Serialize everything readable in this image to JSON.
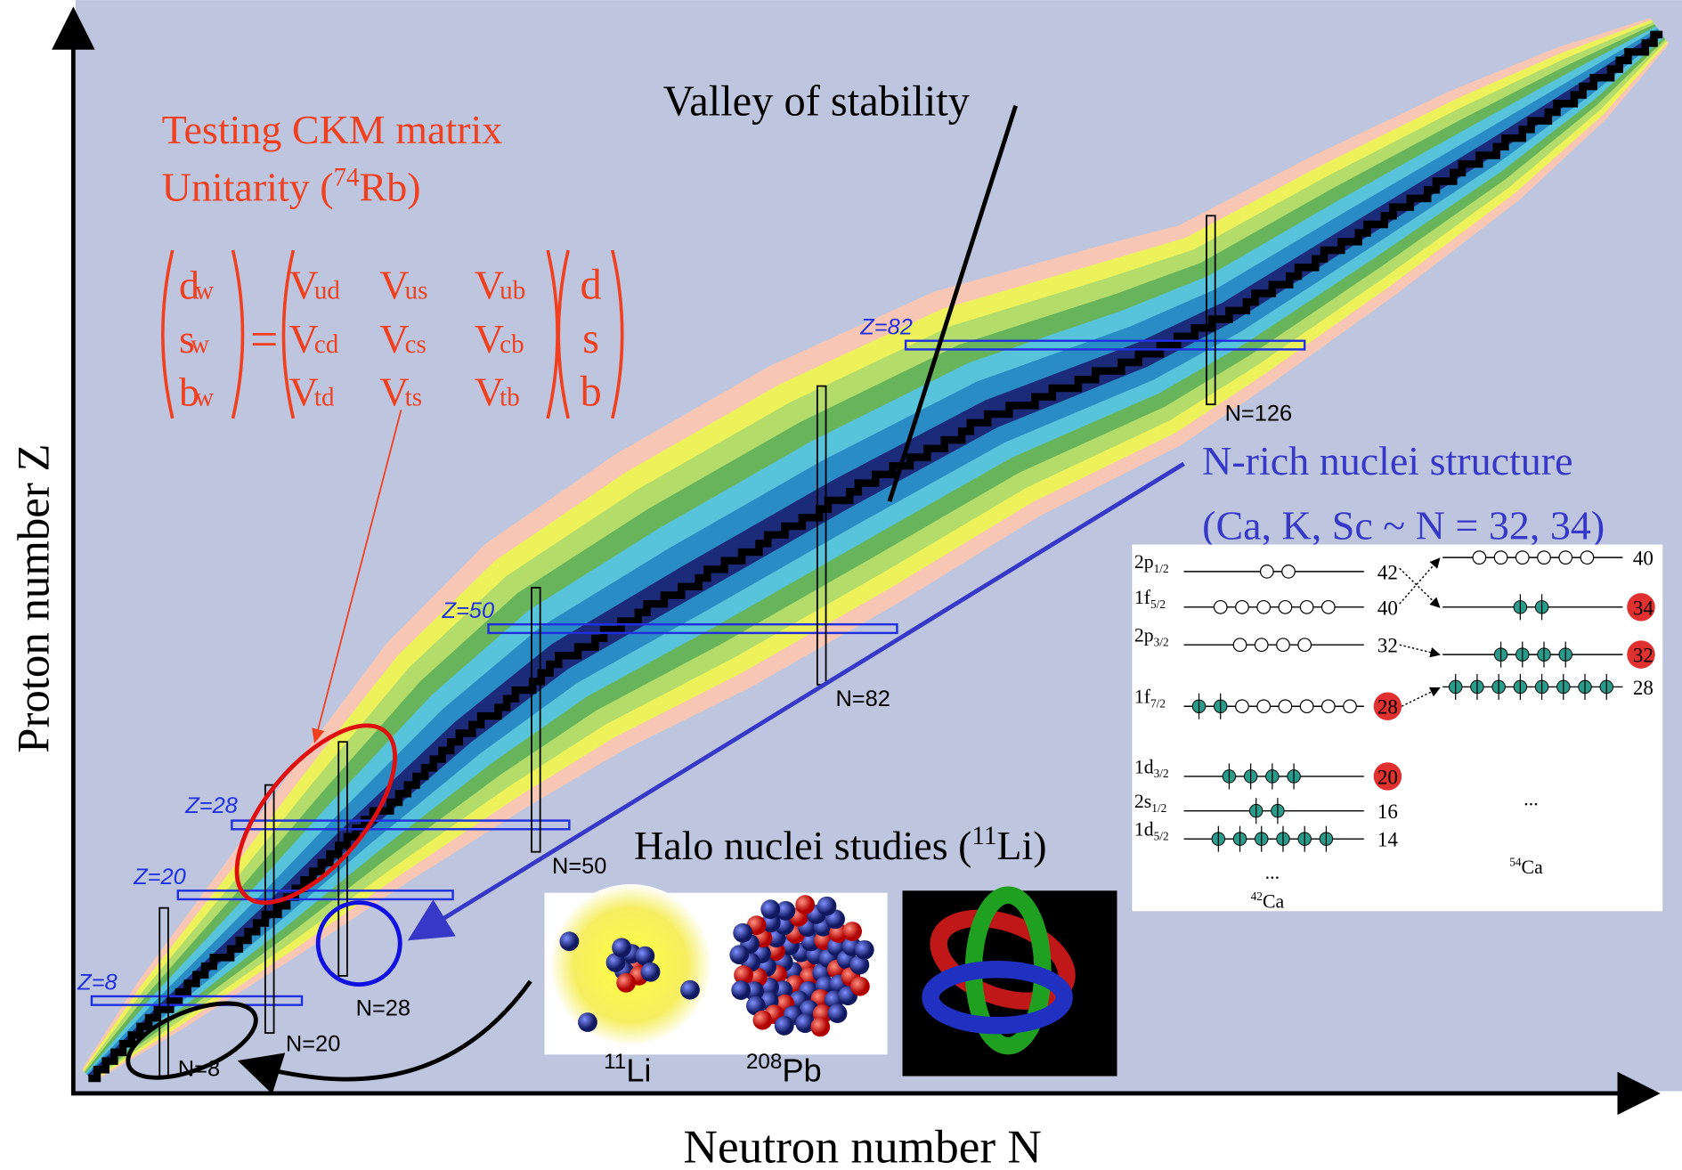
{
  "axes": {
    "y_label": "Proton number Z",
    "x_label": "Neutron number N"
  },
  "valley_label": "Valley of stability",
  "ckm": {
    "line1": "Testing CKM matrix",
    "line2": {
      "before": "Unitarity (",
      "mass": "74",
      "element": "Rb)"
    },
    "lhs": [
      [
        "d",
        "w"
      ],
      [
        "s",
        "w"
      ],
      [
        "b",
        "w"
      ]
    ],
    "equals": "=",
    "matrix": [
      [
        [
          "V",
          "ud"
        ],
        [
          "V",
          "us"
        ],
        [
          "V",
          "ub"
        ]
      ],
      [
        [
          "V",
          "cd"
        ],
        [
          "V",
          "cs"
        ],
        [
          "V",
          "cb"
        ]
      ],
      [
        [
          "V",
          "td"
        ],
        [
          "V",
          "ts"
        ],
        [
          "V",
          "tb"
        ]
      ]
    ],
    "rhs": [
      "d",
      "s",
      "b"
    ]
  },
  "magic_proton": [
    "Z=8",
    "Z=20",
    "Z=28",
    "Z=50",
    "Z=82"
  ],
  "magic_neutron": [
    "N=8",
    "N=20",
    "N=28",
    "N=50",
    "N=82",
    "N=126"
  ],
  "n_rich": {
    "line1": "N-rich nuclei structure",
    "line2": "(Ca, K, Sc ~ N = 32, 34)"
  },
  "halo": {
    "before": "Halo nuclei studies (",
    "mass": "11",
    "element": "Li)",
    "nuclei": [
      [
        "11",
        "Li"
      ],
      [
        "208",
        "Pb"
      ]
    ]
  },
  "shell_model": {
    "left": {
      "levels": [
        {
          "orbital": "2p",
          "j": "1/2",
          "number": 42
        },
        {
          "orbital": "1f",
          "j": "5/2",
          "number": 40
        },
        {
          "orbital": "2p",
          "j": "3/2",
          "number": 32
        },
        {
          "orbital": "1f",
          "j": "7/2",
          "number": 28
        },
        {
          "orbital": "1d",
          "j": "3/2",
          "number": 20
        },
        {
          "orbital": "2s",
          "j": "1/2",
          "number": 16
        },
        {
          "orbital": "1d",
          "j": "5/2",
          "number": 14
        }
      ],
      "ellipsis": "...",
      "nucleus": [
        "42",
        "Ca"
      ]
    },
    "right": {
      "levels": [
        40,
        34,
        32,
        28
      ],
      "ellipsis": "...",
      "nucleus": [
        "54",
        "Ca"
      ]
    }
  }
}
